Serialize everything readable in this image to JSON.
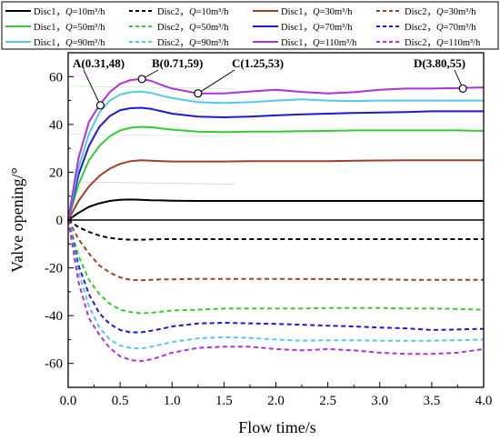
{
  "chart_data": {
    "type": "line",
    "title": "",
    "xlabel": "Flow time/s",
    "ylabel": "Valve opening/°",
    "xlim": [
      0,
      4.0
    ],
    "ylim": [
      -70,
      70
    ],
    "xticks": [
      0.0,
      0.5,
      1.0,
      1.5,
      2.0,
      2.5,
      3.0,
      3.5,
      4.0
    ],
    "xtick_labels": [
      "0.0",
      "0.5",
      "1.0",
      "1.5",
      "2.0",
      "2.5",
      "3.0",
      "3.5",
      "4.0"
    ],
    "yticks": [
      -60,
      -40,
      -20,
      0,
      20,
      40,
      60
    ],
    "ytick_labels": [
      "-60",
      "-40",
      "-20",
      "0",
      "20",
      "40",
      "60"
    ],
    "grid": false,
    "legend_position": "top",
    "legend": [
      {
        "disc": "Disc1",
        "q": "Q",
        "flow": "=10m³/h",
        "color": "#000000",
        "dash": "solid"
      },
      {
        "disc": "Disc2",
        "q": "Q",
        "flow": "=10m³/h",
        "color": "#000000",
        "dash": "dashed"
      },
      {
        "disc": "Disc1",
        "q": "Q",
        "flow": "=30m³/h",
        "color": "#a0402a",
        "dash": "solid"
      },
      {
        "disc": "Disc2",
        "q": "Q",
        "flow": "=30m³/h",
        "color": "#a0402a",
        "dash": "dashed"
      },
      {
        "disc": "Disc1",
        "q": "Q",
        "flow": "=50m³/h",
        "color": "#33cc33",
        "dash": "solid"
      },
      {
        "disc": "Disc2",
        "q": "Q",
        "flow": "=50m³/h",
        "color": "#33cc33",
        "dash": "dashed"
      },
      {
        "disc": "Disc1",
        "q": "Q",
        "flow": "=70m³/h",
        "color": "#1a1ad6",
        "dash": "solid"
      },
      {
        "disc": "Disc2",
        "q": "Q",
        "flow": "=70m³/h",
        "color": "#1a1ad6",
        "dash": "dashed"
      },
      {
        "disc": "Disc1",
        "q": "Q",
        "flow": "=90m³/h",
        "color": "#55c8e6",
        "dash": "solid"
      },
      {
        "disc": "Disc2",
        "q": "Q",
        "flow": "=90m³/h",
        "color": "#55c8e6",
        "dash": "dashed"
      },
      {
        "disc": "Disc1",
        "q": "Q",
        "flow": "=110m³/h",
        "color": "#b030e0",
        "dash": "solid"
      },
      {
        "disc": "Disc2",
        "q": "Q",
        "flow": "=110m³/h",
        "color": "#b030e0",
        "dash": "dashed"
      }
    ],
    "x": [
      0,
      0.1,
      0.2,
      0.3,
      0.4,
      0.5,
      0.6,
      0.7,
      0.8,
      0.9,
      1.0,
      1.25,
      1.5,
      1.75,
      2.0,
      2.25,
      2.5,
      2.75,
      3.0,
      3.25,
      3.5,
      3.75,
      4.0
    ],
    "series": [
      {
        "legend_index": 0,
        "values": [
          0,
          3,
          5.5,
          7,
          8,
          8.5,
          8.6,
          8.5,
          8.3,
          8.2,
          8.1,
          8,
          8,
          8,
          8,
          8,
          8,
          8,
          8,
          8,
          8,
          8,
          8
        ]
      },
      {
        "legend_index": 1,
        "values": [
          0,
          -3,
          -5,
          -6.5,
          -7.5,
          -8,
          -8.2,
          -8.2,
          -8.1,
          -8,
          -8,
          -8,
          -8,
          -8,
          -8,
          -8,
          -8,
          -8,
          -8,
          -8,
          -8,
          -8,
          -8
        ]
      },
      {
        "legend_index": 2,
        "values": [
          0,
          8,
          14,
          18.5,
          21.5,
          23.5,
          24.6,
          25,
          24.8,
          24.6,
          24.5,
          24.5,
          24.5,
          24.6,
          24.6,
          24.6,
          24.6,
          24.8,
          24.9,
          25,
          25,
          25,
          25
        ]
      },
      {
        "legend_index": 3,
        "values": [
          0,
          -8,
          -14,
          -19,
          -22,
          -24,
          -25,
          -25.2,
          -25,
          -24.8,
          -24.8,
          -24.6,
          -24.6,
          -24.6,
          -24.6,
          -24.7,
          -24.7,
          -24.8,
          -24.8,
          -25,
          -25,
          -25,
          -25
        ]
      },
      {
        "legend_index": 4,
        "values": [
          0,
          15,
          25,
          31,
          35,
          37.5,
          38.6,
          39,
          38.8,
          38.3,
          37.8,
          37,
          36.8,
          37,
          37,
          37.2,
          37.3,
          37.5,
          37.5,
          37.5,
          37.5,
          37.5,
          37.3
        ]
      },
      {
        "legend_index": 5,
        "values": [
          0,
          -15,
          -25,
          -31,
          -35,
          -37.5,
          -38.5,
          -39,
          -38.8,
          -38.3,
          -37.8,
          -37.5,
          -37,
          -37,
          -37,
          -37,
          -36.8,
          -36.8,
          -36.8,
          -37,
          -37,
          -37.2,
          -37.5
        ]
      },
      {
        "legend_index": 6,
        "values": [
          0,
          19,
          31,
          39,
          43.5,
          46,
          46.8,
          47,
          46.5,
          45.5,
          44.5,
          43.3,
          43,
          43.3,
          43.8,
          44.2,
          44.5,
          44.8,
          45,
          45.2,
          45.5,
          45.5,
          45.5
        ]
      },
      {
        "legend_index": 7,
        "values": [
          0,
          -19,
          -31,
          -39,
          -43.5,
          -46,
          -47,
          -47,
          -46.3,
          -45.5,
          -44.5,
          -43.3,
          -43,
          -43.2,
          -43.5,
          -43.8,
          -44.2,
          -44.5,
          -45,
          -45.3,
          -46,
          -45.8,
          -45.5
        ]
      },
      {
        "legend_index": 8,
        "values": [
          0,
          22,
          36,
          45,
          50,
          52.5,
          53.5,
          53.8,
          53.2,
          52,
          51,
          49.3,
          49,
          49.3,
          50,
          50.5,
          50,
          49.8,
          50,
          50,
          50,
          50,
          50
        ]
      },
      {
        "legend_index": 9,
        "values": [
          0,
          -22,
          -36,
          -45,
          -50,
          -52.5,
          -53.5,
          -53.8,
          -53,
          -52,
          -51,
          -49.5,
          -49,
          -49.3,
          -50,
          -50.5,
          -50.3,
          -50.3,
          -50.5,
          -50.5,
          -50.5,
          -50.3,
          -50
        ]
      },
      {
        "legend_index": 10,
        "values": [
          0,
          26,
          41,
          48,
          53.5,
          57,
          58.6,
          59,
          58.2,
          56.5,
          55,
          53,
          53,
          53.8,
          54.5,
          53.6,
          53,
          53.5,
          54.5,
          55,
          55,
          55.2,
          55.5
        ]
      },
      {
        "legend_index": 11,
        "values": [
          0,
          -26,
          -41,
          -48,
          -53.5,
          -57,
          -58.6,
          -59,
          -58.3,
          -57,
          -55.5,
          -53.5,
          -53,
          -53,
          -54,
          -54.5,
          -54,
          -54.5,
          -55.5,
          -56,
          -56,
          -55.5,
          -54
        ]
      }
    ],
    "annotations": [
      {
        "label": "A(0.31,48)",
        "x": 0.31,
        "y": 48
      },
      {
        "label": "B(0.71,59)",
        "x": 0.71,
        "y": 59
      },
      {
        "label": "C(1.25,53)",
        "x": 1.25,
        "y": 53
      },
      {
        "label": "D(3.80,55)",
        "x": 3.8,
        "y": 55
      }
    ]
  }
}
